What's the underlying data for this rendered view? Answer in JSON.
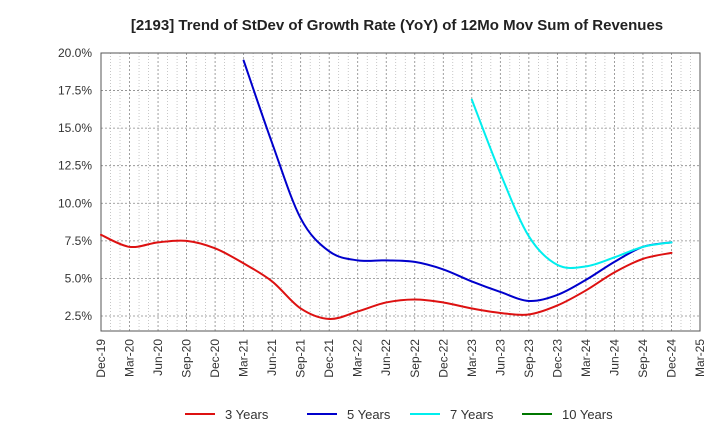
{
  "chart_data": {
    "type": "line",
    "title": "[2193]  Trend of StDev of Growth Rate (YoY) of 12Mo Mov Sum of Revenues",
    "xlabel": "",
    "ylabel": "",
    "ylim": [
      1.5,
      20.0
    ],
    "y_ticks": [
      2.5,
      5.0,
      7.5,
      10.0,
      12.5,
      15.0,
      17.5,
      20.0
    ],
    "y_tick_labels": [
      "2.5%",
      "5.0%",
      "7.5%",
      "10.0%",
      "12.5%",
      "15.0%",
      "17.5%",
      "20.0%"
    ],
    "x_tick_labels": [
      "Dec-19",
      "Mar-20",
      "Jun-20",
      "Sep-20",
      "Dec-20",
      "Mar-21",
      "Jun-21",
      "Sep-21",
      "Dec-21",
      "Mar-22",
      "Jun-22",
      "Sep-22",
      "Dec-22",
      "Mar-23",
      "Jun-23",
      "Sep-23",
      "Dec-23",
      "Mar-24",
      "Jun-24",
      "Sep-24",
      "Dec-24",
      "Mar-25"
    ],
    "grid": true,
    "legend_position": "bottom",
    "series": [
      {
        "name": "3 Years",
        "color": "#dd1111",
        "x": [
          0,
          1,
          2,
          3,
          4,
          5,
          6,
          7,
          8,
          9,
          10,
          11,
          12,
          13,
          14,
          15,
          16,
          17,
          18,
          19,
          20
        ],
        "values": [
          7.9,
          7.1,
          7.4,
          7.5,
          7.0,
          6.0,
          4.8,
          3.0,
          2.3,
          2.8,
          3.4,
          3.6,
          3.4,
          3.0,
          2.7,
          2.6,
          3.2,
          4.2,
          5.4,
          6.3,
          6.7
        ]
      },
      {
        "name": "5 Years",
        "color": "#0000cc",
        "x": [
          5,
          6,
          7,
          8,
          9,
          10,
          11,
          12,
          13,
          14,
          15,
          16,
          17,
          18,
          19,
          20
        ],
        "values": [
          19.5,
          14.0,
          9.0,
          6.8,
          6.2,
          6.2,
          6.1,
          5.6,
          4.8,
          4.1,
          3.5,
          3.9,
          4.9,
          6.1,
          7.1,
          7.4
        ]
      },
      {
        "name": "7 Years",
        "color": "#00eeee",
        "x": [
          13,
          14,
          15,
          16,
          17,
          18,
          19,
          20
        ],
        "values": [
          16.9,
          12.0,
          7.8,
          5.9,
          5.8,
          6.4,
          7.1,
          7.4
        ]
      },
      {
        "name": "10 Years",
        "color": "#007700",
        "x": [],
        "values": []
      }
    ]
  }
}
